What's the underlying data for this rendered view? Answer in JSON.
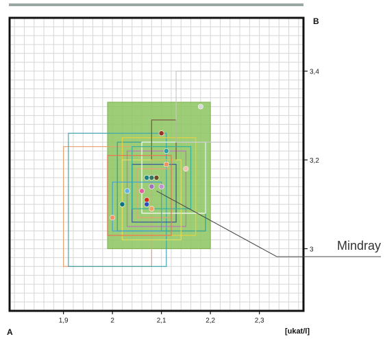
{
  "chart_data": {
    "type": "scatter",
    "corner_labels": {
      "x_axis": "A",
      "y_axis": "B"
    },
    "x_unit": "[ukat/l]",
    "xlim": [
      1.79,
      2.39
    ],
    "ylim": [
      2.86,
      3.52
    ],
    "x_ticks": [
      {
        "value": 1.9,
        "label": "1,9"
      },
      {
        "value": 2.0,
        "label": "2"
      },
      {
        "value": 2.1,
        "label": "2,1"
      },
      {
        "value": 2.2,
        "label": "2,2"
      },
      {
        "value": 2.3,
        "label": "2,3"
      }
    ],
    "y_ticks": [
      {
        "value": 3.0,
        "label": "3"
      },
      {
        "value": 3.2,
        "label": "3,2"
      },
      {
        "value": 3.4,
        "label": "3,4"
      }
    ],
    "grid": true,
    "target_area": {
      "x_range": [
        1.99,
        2.2
      ],
      "y_range": [
        3.0,
        3.33
      ],
      "color": "#8cc45e"
    },
    "boxes": [
      {
        "x_range": [
          1.9,
          2.08
        ],
        "y_range": [
          2.96,
          3.23
        ],
        "color": "#e8a070"
      },
      {
        "x_range": [
          1.91,
          2.11
        ],
        "y_range": [
          2.96,
          3.26
        ],
        "color": "#3aa6b0"
      },
      {
        "x_range": [
          2.01,
          2.19
        ],
        "y_range": [
          3.04,
          3.24
        ],
        "color": "#2f9e9a"
      },
      {
        "x_range": [
          2.02,
          2.17
        ],
        "y_range": [
          3.03,
          3.25
        ],
        "color": "#e8d040"
      },
      {
        "x_range": [
          2.03,
          2.15
        ],
        "y_range": [
          3.05,
          3.22
        ],
        "color": "#c070c0"
      },
      {
        "x_range": [
          2.04,
          2.13
        ],
        "y_range": [
          3.06,
          3.19
        ],
        "color": "#3050a0"
      },
      {
        "x_range": [
          2.05,
          2.12
        ],
        "y_range": [
          3.07,
          3.18
        ],
        "color": "#f0a070"
      },
      {
        "x_range": [
          2.06,
          2.19
        ],
        "y_range": [
          3.08,
          3.24
        ],
        "color": "#ffffff"
      },
      {
        "x_range": [
          2.08,
          2.13
        ],
        "y_range": [
          3.2,
          3.29
        ],
        "color": "#7a5040"
      },
      {
        "x_range": [
          2.13,
          2.24
        ],
        "y_range": [
          3.24,
          3.4
        ],
        "color": "#c8c8c8"
      },
      {
        "x_range": [
          2.02,
          2.14
        ],
        "y_range": [
          3.02,
          3.2
        ],
        "color": "#e0e060"
      },
      {
        "x_range": [
          2.0,
          2.1
        ],
        "y_range": [
          3.04,
          3.15
        ],
        "color": "#40a0e0"
      },
      {
        "x_range": [
          2.04,
          2.16
        ],
        "y_range": [
          3.09,
          3.23
        ],
        "color": "#30b0a0"
      },
      {
        "x_range": [
          1.99,
          2.12
        ],
        "y_range": [
          3.03,
          3.21
        ],
        "color": "#f07050"
      }
    ],
    "points": [
      {
        "x": 2.18,
        "y": 3.32,
        "color": "#d8d8d8"
      },
      {
        "x": 2.1,
        "y": 3.26,
        "color": "#a03020"
      },
      {
        "x": 2.11,
        "y": 3.22,
        "color": "#30a0a0"
      },
      {
        "x": 2.11,
        "y": 3.19,
        "color": "#f09060"
      },
      {
        "x": 2.15,
        "y": 3.18,
        "color": "#f0c0b0"
      },
      {
        "x": 2.08,
        "y": 3.16,
        "color": "#2f7a60"
      },
      {
        "x": 2.09,
        "y": 3.16,
        "color": "#6a5020"
      },
      {
        "x": 2.07,
        "y": 3.16,
        "color": "#208080"
      },
      {
        "x": 2.08,
        "y": 3.14,
        "color": "#a070c0"
      },
      {
        "x": 2.06,
        "y": 3.13,
        "color": "#e060a0"
      },
      {
        "x": 2.07,
        "y": 3.11,
        "color": "#d03020"
      },
      {
        "x": 2.1,
        "y": 3.14,
        "color": "#c090d0"
      },
      {
        "x": 2.03,
        "y": 3.13,
        "color": "#60b0e0"
      },
      {
        "x": 2.02,
        "y": 3.1,
        "color": "#107080"
      },
      {
        "x": 2.07,
        "y": 3.1,
        "color": "#3050c0"
      },
      {
        "x": 2.08,
        "y": 3.09,
        "color": "#f0a060"
      },
      {
        "x": 2.0,
        "y": 3.07,
        "color": "#f09070"
      }
    ],
    "annotation": {
      "label": "Mindray",
      "target": {
        "x": 2.09,
        "y": 3.13
      }
    }
  }
}
